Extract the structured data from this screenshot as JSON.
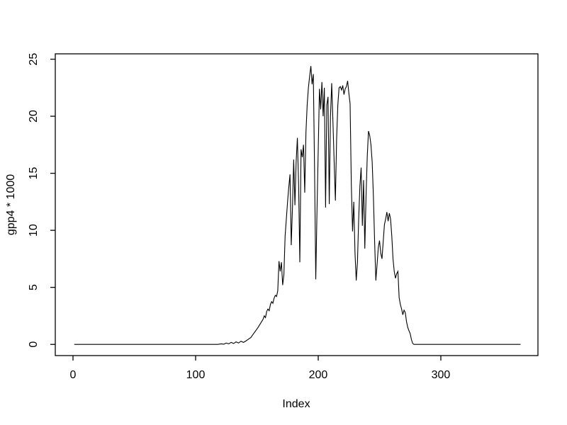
{
  "figure": {
    "background_color": "#ffffff",
    "axis_color": "#000000",
    "text_color": "#000000",
    "series_color": "#000000"
  },
  "chart_data": {
    "type": "line",
    "title": "",
    "xlabel": "Index",
    "ylabel": "gpp4 * 1000",
    "legend": false,
    "grid": false,
    "x_ticks": [
      0,
      100,
      200,
      300
    ],
    "y_ticks": [
      0,
      5,
      10,
      15,
      20,
      25
    ],
    "xlim": [
      -14.45,
      379.2
    ],
    "ylim": [
      -0.98,
      25.47
    ],
    "x_range_data": [
      1,
      365
    ],
    "y_max_data": 24.4,
    "points": [
      [
        1,
        0
      ],
      [
        118,
        0
      ],
      [
        121,
        0.05
      ],
      [
        123,
        0.02
      ],
      [
        125,
        0.12
      ],
      [
        127,
        0.05
      ],
      [
        129,
        0.18
      ],
      [
        131,
        0.08
      ],
      [
        133,
        0.22
      ],
      [
        135,
        0.12
      ],
      [
        137,
        0.28
      ],
      [
        139,
        0.18
      ],
      [
        141,
        0.3
      ],
      [
        143,
        0.45
      ],
      [
        145,
        0.6
      ],
      [
        147,
        0.9
      ],
      [
        149,
        1.2
      ],
      [
        151,
        1.5
      ],
      [
        153,
        1.85
      ],
      [
        155,
        2.2
      ],
      [
        156,
        2.5
      ],
      [
        157,
        2.35
      ],
      [
        158,
        2.9
      ],
      [
        159,
        3.1
      ],
      [
        160,
        2.95
      ],
      [
        161,
        3.5
      ],
      [
        162,
        3.75
      ],
      [
        163,
        3.6
      ],
      [
        164,
        4.05
      ],
      [
        165,
        4.3
      ],
      [
        166,
        4.2
      ],
      [
        167,
        4.7
      ],
      [
        168,
        7.3
      ],
      [
        169,
        6.4
      ],
      [
        170,
        7.2
      ],
      [
        171,
        5.2
      ],
      [
        172,
        6.1
      ],
      [
        173,
        9.5
      ],
      [
        174,
        11
      ],
      [
        175,
        12.5
      ],
      [
        176,
        13.8
      ],
      [
        177,
        14.9
      ],
      [
        178,
        8.7
      ],
      [
        179,
        12
      ],
      [
        180,
        16.2
      ],
      [
        181,
        12.2
      ],
      [
        182,
        16
      ],
      [
        183,
        18.1
      ],
      [
        184,
        14
      ],
      [
        185,
        7.2
      ],
      [
        186,
        17.1
      ],
      [
        187,
        16.4
      ],
      [
        188,
        17.5
      ],
      [
        189,
        13.3
      ],
      [
        190,
        18.6
      ],
      [
        191,
        21
      ],
      [
        192,
        22.5
      ],
      [
        193,
        23.5
      ],
      [
        194,
        24.4
      ],
      [
        195,
        22.8
      ],
      [
        196,
        23.7
      ],
      [
        197,
        15.5
      ],
      [
        198,
        5.7
      ],
      [
        199,
        11.7
      ],
      [
        200,
        17
      ],
      [
        201,
        22.4
      ],
      [
        202,
        20.6
      ],
      [
        203,
        23
      ],
      [
        204,
        20
      ],
      [
        205,
        22.5
      ],
      [
        206,
        12
      ],
      [
        207,
        21
      ],
      [
        208,
        21.7
      ],
      [
        209,
        12.3
      ],
      [
        210,
        20
      ],
      [
        211,
        22.9
      ],
      [
        212,
        19.5
      ],
      [
        213,
        16
      ],
      [
        214,
        12.6
      ],
      [
        215,
        18
      ],
      [
        216,
        21
      ],
      [
        217,
        22.5
      ],
      [
        218,
        22.6
      ],
      [
        219,
        22.3
      ],
      [
        220,
        22.7
      ],
      [
        221,
        21.9
      ],
      [
        222,
        22.4
      ],
      [
        223,
        22.6
      ],
      [
        224,
        23.1
      ],
      [
        225,
        22
      ],
      [
        226,
        21.1
      ],
      [
        227,
        14
      ],
      [
        228,
        9.9
      ],
      [
        229,
        12.5
      ],
      [
        230,
        8
      ],
      [
        231,
        5.6
      ],
      [
        232,
        7.2
      ],
      [
        233,
        11
      ],
      [
        234,
        13.9
      ],
      [
        235,
        15.5
      ],
      [
        236,
        10.4
      ],
      [
        237,
        14.4
      ],
      [
        238,
        8.4
      ],
      [
        239,
        13
      ],
      [
        240,
        16.5
      ],
      [
        241,
        18.7
      ],
      [
        242,
        18.3
      ],
      [
        243,
        17.5
      ],
      [
        244,
        16
      ],
      [
        245,
        13
      ],
      [
        246,
        9
      ],
      [
        247,
        5.6
      ],
      [
        248,
        7
      ],
      [
        249,
        8.5
      ],
      [
        250,
        9.1
      ],
      [
        251,
        8
      ],
      [
        252,
        7.5
      ],
      [
        253,
        9
      ],
      [
        254,
        10.5
      ],
      [
        255,
        11
      ],
      [
        256,
        11.6
      ],
      [
        257,
        10.8
      ],
      [
        258,
        11.5
      ],
      [
        259,
        11
      ],
      [
        260,
        9.5
      ],
      [
        261,
        7.5
      ],
      [
        262,
        6.4
      ],
      [
        263,
        5.8
      ],
      [
        264,
        6.2
      ],
      [
        265,
        6.4
      ],
      [
        266,
        4.1
      ],
      [
        267,
        3.5
      ],
      [
        268,
        3.1
      ],
      [
        269,
        2.6
      ],
      [
        270,
        3
      ],
      [
        271,
        2.8
      ],
      [
        272,
        2
      ],
      [
        273,
        1.5
      ],
      [
        274,
        1.2
      ],
      [
        275,
        0.95
      ],
      [
        276,
        0.43
      ],
      [
        277,
        0.1
      ],
      [
        278,
        0
      ],
      [
        365,
        0
      ]
    ]
  }
}
